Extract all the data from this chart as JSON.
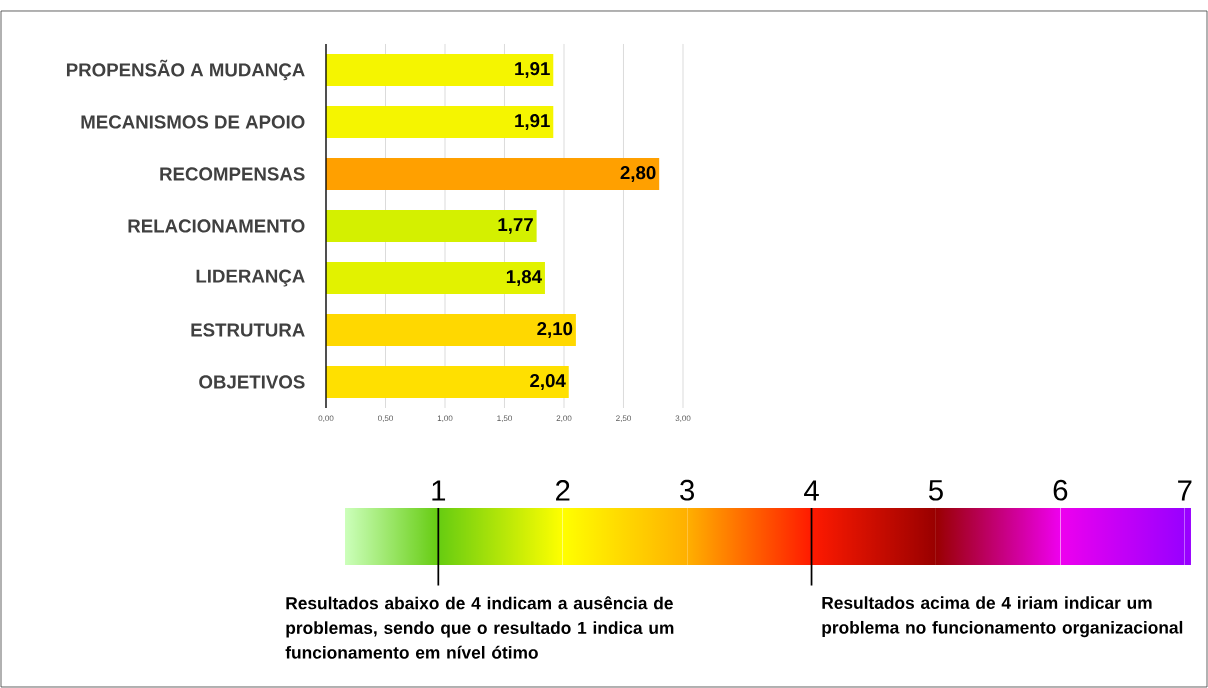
{
  "chart_data": {
    "type": "bar",
    "orientation": "horizontal",
    "categories": [
      "PROPENSÃO A MUDANÇA",
      "MECANISMOS DE APOIO",
      "RECOMPENSAS",
      "RELACIONAMENTO",
      "LIDERANÇA",
      "ESTRUTURA",
      "OBJETIVOS"
    ],
    "values": [
      1.91,
      1.91,
      2.8,
      1.77,
      1.84,
      2.1,
      2.04
    ],
    "colors": [
      "#f5f500",
      "#f5f500",
      "#ffa000",
      "#d4f000",
      "#e2f200",
      "#ffd800",
      "#ffe000"
    ],
    "value_labels": [
      "1,91",
      "1,91",
      "2,80",
      "1,77",
      "1,84",
      "2,10",
      "2,04"
    ],
    "xlim": [
      0,
      3
    ],
    "xticks": [
      {
        "value": 0,
        "label": "0,00"
      },
      {
        "value": 0.5,
        "label": "0,50"
      },
      {
        "value": 1,
        "label": "1,00"
      },
      {
        "value": 1.5,
        "label": "1,50"
      },
      {
        "value": 2,
        "label": "2,00"
      },
      {
        "value": 2.5,
        "label": "2,50"
      },
      {
        "value": 3,
        "label": "3,00"
      }
    ],
    "grid": "x",
    "clim": [
      0.25,
      7.05
    ],
    "cticks": [
      1,
      2,
      3,
      4,
      5,
      6,
      7
    ],
    "annotations": [
      "Resultados abaixo de 4 indicam a ausência de problemas, sendo que o resultado 1 indica um funcionamento em nível ótimo",
      "Resultados acima de 4 iriam indicar um problema no funcionamento organizacional"
    ]
  }
}
